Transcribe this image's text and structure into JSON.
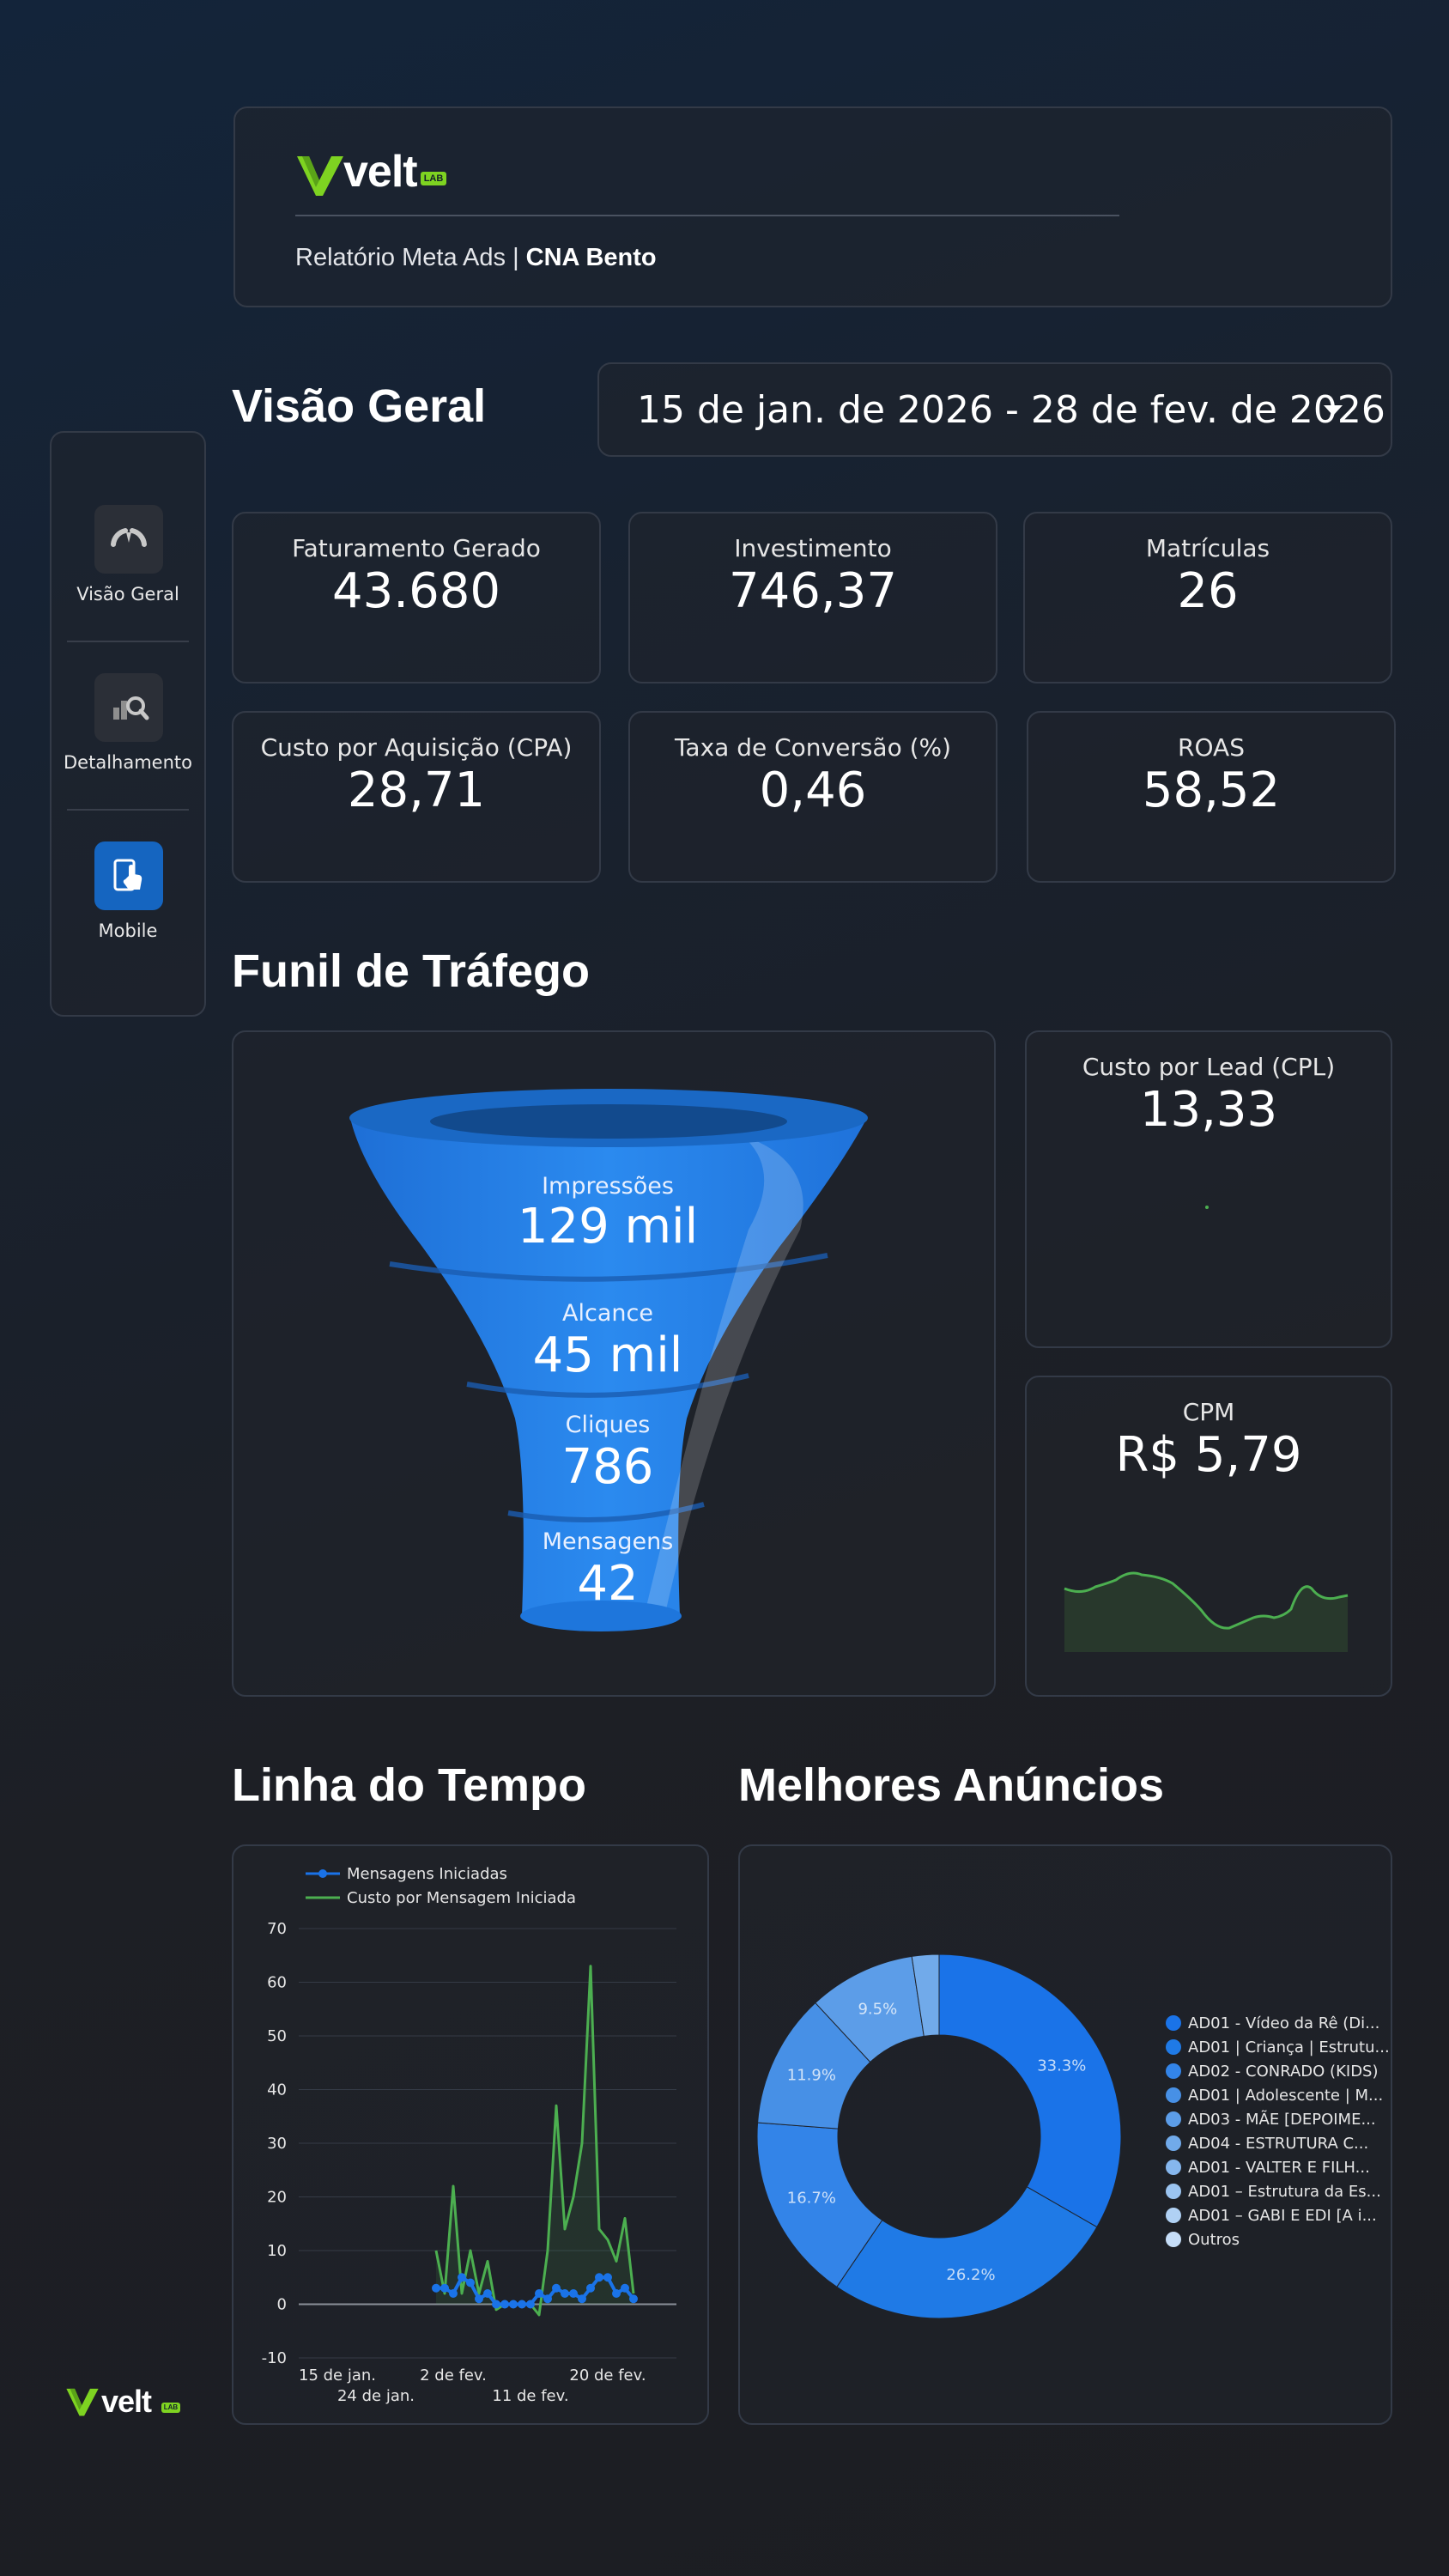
{
  "brand": {
    "logo_text": "velt",
    "logo_tag": "LAB",
    "accent": "#7ed321"
  },
  "header": {
    "report_prefix": "Relatório Meta Ads | ",
    "client": "CNA Bento"
  },
  "sidebar": {
    "items": [
      {
        "label": "Visão Geral",
        "icon": "gauge-icon"
      },
      {
        "label": "Detalhamento",
        "icon": "magnify-chart-icon"
      },
      {
        "label": "Mobile",
        "icon": "phone-touch-icon"
      }
    ]
  },
  "overview": {
    "title": "Visão Geral",
    "date_range": "15 de jan. de 2026 - 28 de fev. de 2026"
  },
  "kpis": [
    {
      "label": "Faturamento Gerado",
      "value": "43.680"
    },
    {
      "label": "Investimento",
      "value": "746,37"
    },
    {
      "label": "Matrículas",
      "value": "26"
    },
    {
      "label": "Custo por Aquisição (CPA)",
      "value": "28,71"
    },
    {
      "label": "Taxa de Conversão (%)",
      "value": "0,46"
    },
    {
      "label": "ROAS",
      "value": "58,52"
    }
  ],
  "funnel": {
    "title": "Funil de Tráfego",
    "stages": [
      {
        "label": "Impressões",
        "value": "129 mil"
      },
      {
        "label": "Alcance",
        "value": "45 mil"
      },
      {
        "label": "Cliques",
        "value": "786"
      },
      {
        "label": "Mensagens",
        "value": "42"
      }
    ]
  },
  "cpl": {
    "label": "Custo por Lead (CPL)",
    "value": "13,33"
  },
  "cpm": {
    "label": "CPM",
    "value": "R$ 5,79"
  },
  "timeline": {
    "title": "Linha do Tempo",
    "chart_data": {
      "type": "line",
      "series": [
        {
          "name": "Mensagens Iniciadas",
          "color": "#1a73e8",
          "points": [
            [
              16,
              3
            ],
            [
              17,
              3
            ],
            [
              18,
              2
            ],
            [
              19,
              5
            ],
            [
              20,
              4
            ],
            [
              21,
              1
            ],
            [
              22,
              2
            ],
            [
              23,
              0
            ],
            [
              24,
              0
            ],
            [
              25,
              0
            ],
            [
              26,
              0
            ],
            [
              27,
              0
            ],
            [
              28,
              2
            ],
            [
              29,
              1
            ],
            [
              30,
              3
            ],
            [
              31,
              2
            ],
            [
              32,
              2
            ],
            [
              33,
              1
            ],
            [
              34,
              3
            ],
            [
              35,
              5
            ],
            [
              36,
              5
            ],
            [
              37,
              2
            ],
            [
              38,
              3
            ],
            [
              39,
              1
            ]
          ]
        },
        {
          "name": "Custo por Mensagem Iniciada",
          "color": "#4caf50",
          "points": [
            [
              16,
              10
            ],
            [
              17,
              2
            ],
            [
              18,
              22
            ],
            [
              19,
              2
            ],
            [
              20,
              10
            ],
            [
              21,
              2
            ],
            [
              22,
              8
            ],
            [
              23,
              -1
            ],
            [
              24,
              0
            ],
            [
              25,
              0
            ],
            [
              26,
              0
            ],
            [
              27,
              0
            ],
            [
              28,
              -2
            ],
            [
              29,
              10
            ],
            [
              30,
              37
            ],
            [
              31,
              14
            ],
            [
              32,
              20
            ],
            [
              33,
              30
            ],
            [
              34,
              63
            ],
            [
              35,
              14
            ],
            [
              36,
              12
            ],
            [
              37,
              8
            ],
            [
              38,
              16
            ],
            [
              39,
              2
            ]
          ]
        }
      ],
      "x_ticks": [
        "15 de jan.",
        "24 de jan.",
        "2 de fev.",
        "11 de fev.",
        "20 de fev."
      ],
      "y_ticks": [
        "70",
        "60",
        "50",
        "40",
        "30",
        "20",
        "10",
        "0",
        "-10"
      ],
      "ylim": [
        -10,
        70
      ],
      "grid": true,
      "legend": "top-left"
    }
  },
  "ads": {
    "title": "Melhores Anúncios",
    "chart_data": {
      "type": "pie",
      "donut": true,
      "slices": [
        {
          "label": "AD01 - Vídeo da Rê (Di...",
          "value": 33.3,
          "color": "#1a73e8"
        },
        {
          "label": "AD01 | Criança | Estrutu...",
          "value": 26.2,
          "color": "#1f7ae6"
        },
        {
          "label": "AD02 - CONRADO (KIDS)",
          "value": 16.7,
          "color": "#3384e8"
        },
        {
          "label": "AD01 | Adolescente | M...",
          "value": 11.9,
          "color": "#4790e6"
        },
        {
          "label": "AD03 - MÃE [DEPOIME...",
          "value": 9.5,
          "color": "#5c9de8"
        },
        {
          "label": "AD04 - ESTRUTURA C...",
          "value": 2.4,
          "color": "#71aaea"
        },
        {
          "label": "AD01 - VALTER E FILH...",
          "value": 0,
          "color": "#86b7ee"
        },
        {
          "label": "AD01 – Estrutura da Es...",
          "value": 0,
          "color": "#9bc4f0"
        },
        {
          "label": "AD01 – GABI E EDI [A i...",
          "value": 0,
          "color": "#b0d1f4"
        },
        {
          "label": "Outros",
          "value": 0,
          "color": "#c6def8"
        }
      ],
      "percent_labels": [
        "33.3%",
        "26.2%",
        "16.7%",
        "11.9%",
        "9.5%"
      ],
      "legend": "right"
    }
  }
}
